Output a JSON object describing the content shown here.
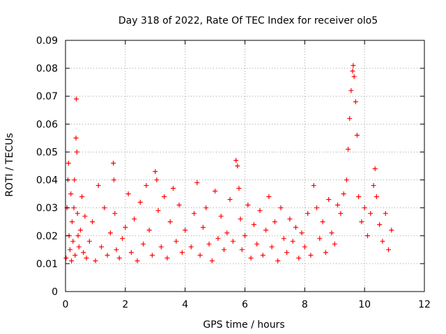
{
  "chart_data": {
    "type": "scatter",
    "title": "Day 318 of 2022, Rate Of TEC Index for receiver olo5",
    "xlabel": "GPS time / hours",
    "ylabel": "ROTI / TECUs",
    "xlim": [
      0,
      12
    ],
    "ylim": [
      0,
      0.09
    ],
    "x_ticks": [
      "0",
      "2",
      "4",
      "6",
      "8",
      "10",
      "12"
    ],
    "y_ticks": [
      "0",
      "0.01",
      "0.02",
      "0.03",
      "0.04",
      "0.05",
      "0.06",
      "0.07",
      "0.08",
      "0.09"
    ],
    "grid": true,
    "marker": "+",
    "color": "#ff0000",
    "series": [
      {
        "x": [
          0.02,
          0.05,
          0.08,
          0.1,
          0.12,
          0.15,
          0.18,
          0.2,
          0.22,
          0.25,
          0.28,
          0.3,
          0.32,
          0.35,
          0.36,
          0.38,
          0.4,
          0.42,
          0.45,
          0.5,
          0.55,
          0.6,
          0.65,
          0.7,
          0.8,
          0.9,
          1.0,
          1.1,
          1.2,
          1.3,
          1.4,
          1.5,
          1.6,
          1.62,
          1.65,
          1.7,
          1.8,
          1.9,
          2.0,
          2.1,
          2.2,
          2.3,
          2.4,
          2.5,
          2.6,
          2.7,
          2.8,
          2.9,
          3.0,
          3.05,
          3.1,
          3.2,
          3.3,
          3.4,
          3.5,
          3.6,
          3.7,
          3.8,
          3.9,
          4.0,
          4.2,
          4.3,
          4.4,
          4.5,
          4.6,
          4.7,
          4.8,
          4.9,
          5.0,
          5.1,
          5.2,
          5.3,
          5.4,
          5.5,
          5.6,
          5.7,
          5.75,
          5.8,
          5.85,
          5.9,
          6.0,
          6.1,
          6.2,
          6.3,
          6.4,
          6.5,
          6.6,
          6.7,
          6.8,
          6.9,
          7.0,
          7.1,
          7.2,
          7.3,
          7.4,
          7.5,
          7.6,
          7.7,
          7.8,
          7.9,
          8.0,
          8.1,
          8.2,
          8.3,
          8.4,
          8.5,
          8.6,
          8.7,
          8.8,
          8.9,
          9.0,
          9.1,
          9.2,
          9.3,
          9.4,
          9.45,
          9.5,
          9.55,
          9.6,
          9.62,
          9.65,
          9.7,
          9.75,
          9.8,
          9.9,
          10.0,
          10.1,
          10.2,
          10.3,
          10.35,
          10.4,
          10.5,
          10.6,
          10.7,
          10.8,
          10.9
        ],
        "y": [
          0.012,
          0.03,
          0.04,
          0.046,
          0.02,
          0.015,
          0.035,
          0.011,
          0.025,
          0.018,
          0.03,
          0.04,
          0.013,
          0.055,
          0.069,
          0.05,
          0.028,
          0.02,
          0.016,
          0.022,
          0.034,
          0.014,
          0.027,
          0.012,
          0.018,
          0.025,
          0.011,
          0.038,
          0.016,
          0.03,
          0.013,
          0.021,
          0.046,
          0.04,
          0.028,
          0.015,
          0.012,
          0.019,
          0.023,
          0.035,
          0.014,
          0.026,
          0.011,
          0.032,
          0.017,
          0.038,
          0.022,
          0.013,
          0.043,
          0.04,
          0.029,
          0.016,
          0.034,
          0.012,
          0.025,
          0.037,
          0.018,
          0.031,
          0.014,
          0.022,
          0.016,
          0.028,
          0.039,
          0.013,
          0.023,
          0.03,
          0.017,
          0.011,
          0.036,
          0.019,
          0.027,
          0.015,
          0.021,
          0.033,
          0.018,
          0.047,
          0.045,
          0.037,
          0.026,
          0.015,
          0.02,
          0.031,
          0.012,
          0.024,
          0.017,
          0.029,
          0.013,
          0.022,
          0.034,
          0.016,
          0.025,
          0.011,
          0.03,
          0.019,
          0.014,
          0.026,
          0.018,
          0.023,
          0.012,
          0.021,
          0.016,
          0.028,
          0.013,
          0.038,
          0.03,
          0.019,
          0.025,
          0.014,
          0.033,
          0.021,
          0.017,
          0.031,
          0.028,
          0.035,
          0.04,
          0.051,
          0.062,
          0.072,
          0.079,
          0.081,
          0.077,
          0.068,
          0.056,
          0.034,
          0.025,
          0.03,
          0.02,
          0.028,
          0.038,
          0.044,
          0.034,
          0.024,
          0.018,
          0.028,
          0.015,
          0.022
        ]
      }
    ]
  }
}
